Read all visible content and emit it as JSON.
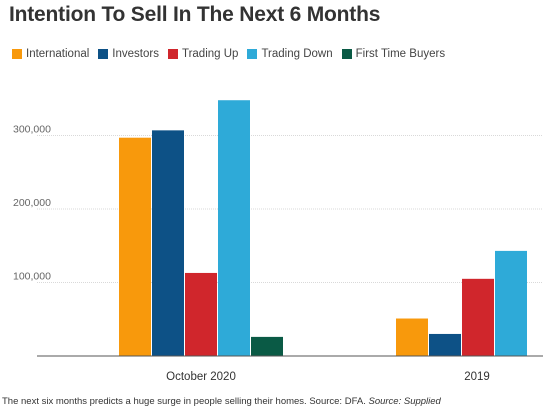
{
  "chart_data": {
    "type": "bar",
    "title": "Intention To Sell In The Next 6 Months",
    "categories": [
      "October 2020",
      "2019"
    ],
    "series": [
      {
        "name": "International",
        "color": "#F8990C",
        "values": [
          297000,
          51000
        ]
      },
      {
        "name": "Investors",
        "color": "#0D5186",
        "values": [
          307000,
          30000
        ]
      },
      {
        "name": "Trading Up",
        "color": "#D0262C",
        "values": [
          113000,
          105000
        ]
      },
      {
        "name": "Trading Down",
        "color": "#2EAAD8",
        "values": [
          348000,
          143000
        ]
      },
      {
        "name": "First Time Buyers",
        "color": "#0A5A45",
        "values": [
          26000,
          null
        ]
      }
    ],
    "yticks": [
      100000,
      200000,
      300000
    ],
    "ytick_labels": [
      "100,000",
      "200,000",
      "300,000"
    ],
    "ylim": [
      0,
      370000
    ],
    "grid": true,
    "legend_position": "top-left",
    "xlabel": "",
    "ylabel": ""
  },
  "caption": {
    "text": "The next six months predicts a huge surge in people selling their homes. Source: DFA.",
    "source": "Source: Supplied"
  }
}
